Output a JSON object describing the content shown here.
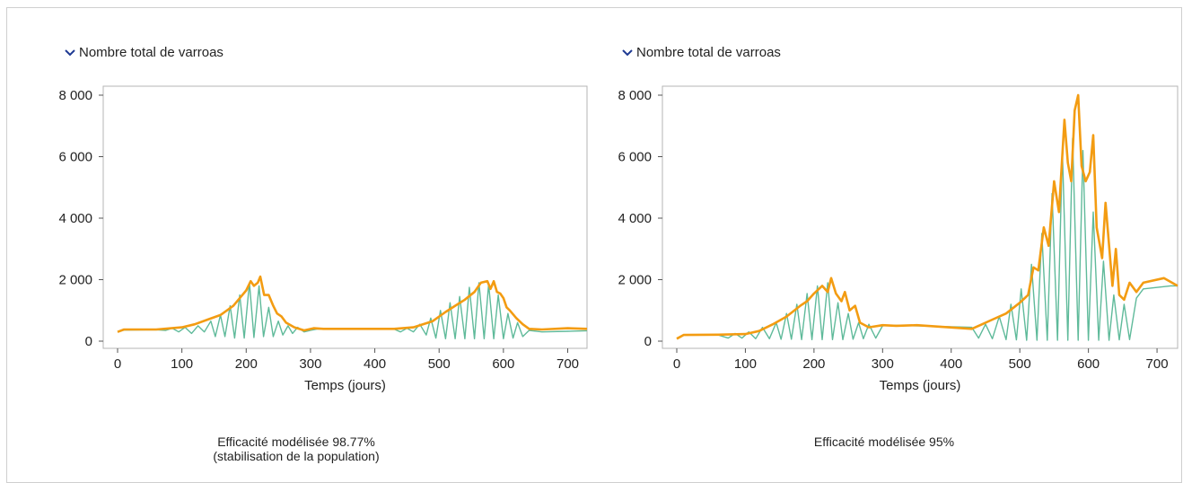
{
  "colors": {
    "line_min": "#5fba9a",
    "line_max": "#f39c12",
    "axis": "#555555",
    "chevron": "#1f3a93"
  },
  "panels": [
    {
      "dropdown_label": "Nombre total de varroas",
      "caption_line1": "Efficacité modélisée 98.77%",
      "caption_line2": "(stabilisation de la population)"
    },
    {
      "dropdown_label": "Nombre total de varroas",
      "caption_line1": "Efficacité modélisée 95%",
      "caption_line2": ""
    }
  ],
  "chart_data": [
    {
      "type": "line",
      "title": "Nombre total de varroas",
      "xlabel": "Temps (jours)",
      "ylabel": "",
      "xlim": [
        0,
        730
      ],
      "ylim": [
        0,
        8000
      ],
      "xticks": [
        "0",
        "100",
        "200",
        "300",
        "400",
        "500",
        "600",
        "700"
      ],
      "yticks": [
        "0",
        "2 000",
        "4 000",
        "6 000",
        "8 000"
      ],
      "grid": false,
      "series": [
        {
          "color": "#5fba9a",
          "x": [
            0,
            10,
            60,
            75,
            85,
            95,
            105,
            115,
            125,
            135,
            145,
            152,
            160,
            167,
            175,
            182,
            190,
            197,
            205,
            212,
            220,
            227,
            235,
            242,
            250,
            257,
            265,
            272,
            280,
            290,
            300,
            310,
            350,
            400,
            430,
            440,
            450,
            460,
            470,
            480,
            487,
            495,
            502,
            510,
            517,
            525,
            532,
            540,
            547,
            555,
            562,
            570,
            577,
            585,
            592,
            600,
            607,
            615,
            622,
            630,
            640,
            660,
            700,
            730
          ],
          "y": [
            300,
            360,
            370,
            350,
            420,
            300,
            450,
            250,
            500,
            300,
            650,
            150,
            850,
            150,
            1150,
            100,
            1500,
            100,
            1900,
            120,
            1800,
            150,
            1100,
            150,
            650,
            200,
            500,
            250,
            450,
            300,
            350,
            390,
            400,
            400,
            390,
            300,
            420,
            300,
            550,
            200,
            750,
            100,
            1000,
            80,
            1250,
            80,
            1450,
            80,
            1750,
            80,
            1900,
            80,
            1850,
            80,
            1500,
            80,
            900,
            100,
            600,
            150,
            350,
            300,
            320,
            340
          ]
        },
        {
          "color": "#f39c12",
          "x": [
            0,
            10,
            60,
            100,
            120,
            140,
            160,
            180,
            190,
            200,
            207,
            212,
            218,
            222,
            228,
            235,
            242,
            248,
            255,
            262,
            275,
            290,
            305,
            320,
            400,
            430,
            460,
            490,
            510,
            525,
            540,
            555,
            565,
            575,
            580,
            585,
            590,
            595,
            600,
            605,
            610,
            620,
            630,
            640,
            660,
            700,
            730
          ],
          "y": [
            300,
            380,
            380,
            450,
            550,
            700,
            850,
            1150,
            1400,
            1650,
            1950,
            1800,
            1900,
            2100,
            1500,
            1500,
            1150,
            900,
            800,
            600,
            450,
            350,
            420,
            400,
            400,
            400,
            450,
            650,
            950,
            1150,
            1350,
            1600,
            1900,
            1950,
            1700,
            1950,
            1600,
            1550,
            1400,
            1100,
            1000,
            750,
            550,
            400,
            380,
            420,
            400
          ]
        }
      ]
    },
    {
      "type": "line",
      "title": "Nombre total de varroas",
      "xlabel": "Temps (jours)",
      "ylabel": "",
      "xlim": [
        0,
        730
      ],
      "ylim": [
        0,
        8000
      ],
      "xticks": [
        "0",
        "100",
        "200",
        "300",
        "400",
        "500",
        "600",
        "700"
      ],
      "yticks": [
        "0",
        "2 000",
        "4 000",
        "6 000",
        "8 000"
      ],
      "grid": false,
      "series": [
        {
          "color": "#5fba9a",
          "x": [
            0,
            10,
            60,
            75,
            85,
            95,
            105,
            115,
            125,
            135,
            145,
            152,
            160,
            167,
            175,
            182,
            190,
            197,
            205,
            212,
            220,
            227,
            235,
            242,
            250,
            257,
            265,
            272,
            280,
            290,
            300,
            310,
            350,
            430,
            440,
            450,
            460,
            470,
            480,
            487,
            495,
            502,
            510,
            517,
            525,
            532,
            540,
            547,
            555,
            562,
            570,
            577,
            585,
            592,
            600,
            607,
            615,
            622,
            630,
            637,
            645,
            652,
            660,
            670,
            680,
            720,
            730
          ],
          "y": [
            100,
            200,
            200,
            100,
            250,
            100,
            300,
            80,
            450,
            80,
            600,
            60,
            900,
            60,
            1200,
            50,
            1550,
            50,
            1800,
            50,
            1900,
            50,
            1250,
            50,
            900,
            60,
            600,
            80,
            550,
            100,
            500,
            520,
            500,
            450,
            100,
            550,
            80,
            800,
            50,
            1200,
            40,
            1700,
            30,
            2500,
            30,
            3500,
            30,
            4800,
            30,
            6200,
            30,
            6600,
            30,
            6200,
            30,
            4200,
            30,
            2600,
            30,
            1500,
            40,
            1200,
            50,
            1400,
            1700,
            1800,
            1800
          ]
        },
        {
          "color": "#f39c12",
          "x": [
            0,
            10,
            60,
            100,
            120,
            140,
            160,
            180,
            190,
            200,
            212,
            220,
            225,
            232,
            240,
            245,
            252,
            260,
            267,
            280,
            300,
            320,
            350,
            430,
            445,
            460,
            480,
            500,
            512,
            520,
            527,
            535,
            542,
            550,
            557,
            565,
            570,
            575,
            580,
            585,
            590,
            596,
            602,
            607,
            612,
            620,
            625,
            635,
            640,
            645,
            652,
            660,
            670,
            680,
            710,
            730
          ],
          "y": [
            80,
            200,
            210,
            230,
            330,
            550,
            800,
            1150,
            1300,
            1550,
            1800,
            1600,
            2050,
            1550,
            1300,
            1600,
            1000,
            1150,
            600,
            450,
            520,
            500,
            520,
            400,
            550,
            700,
            900,
            1250,
            1500,
            2400,
            2300,
            3700,
            3100,
            5200,
            4200,
            7200,
            5800,
            5200,
            7500,
            8000,
            5700,
            5200,
            5500,
            6700,
            3700,
            2700,
            4500,
            1800,
            3000,
            1500,
            1350,
            1900,
            1600,
            1900,
            2050,
            1800
          ]
        }
      ]
    }
  ]
}
